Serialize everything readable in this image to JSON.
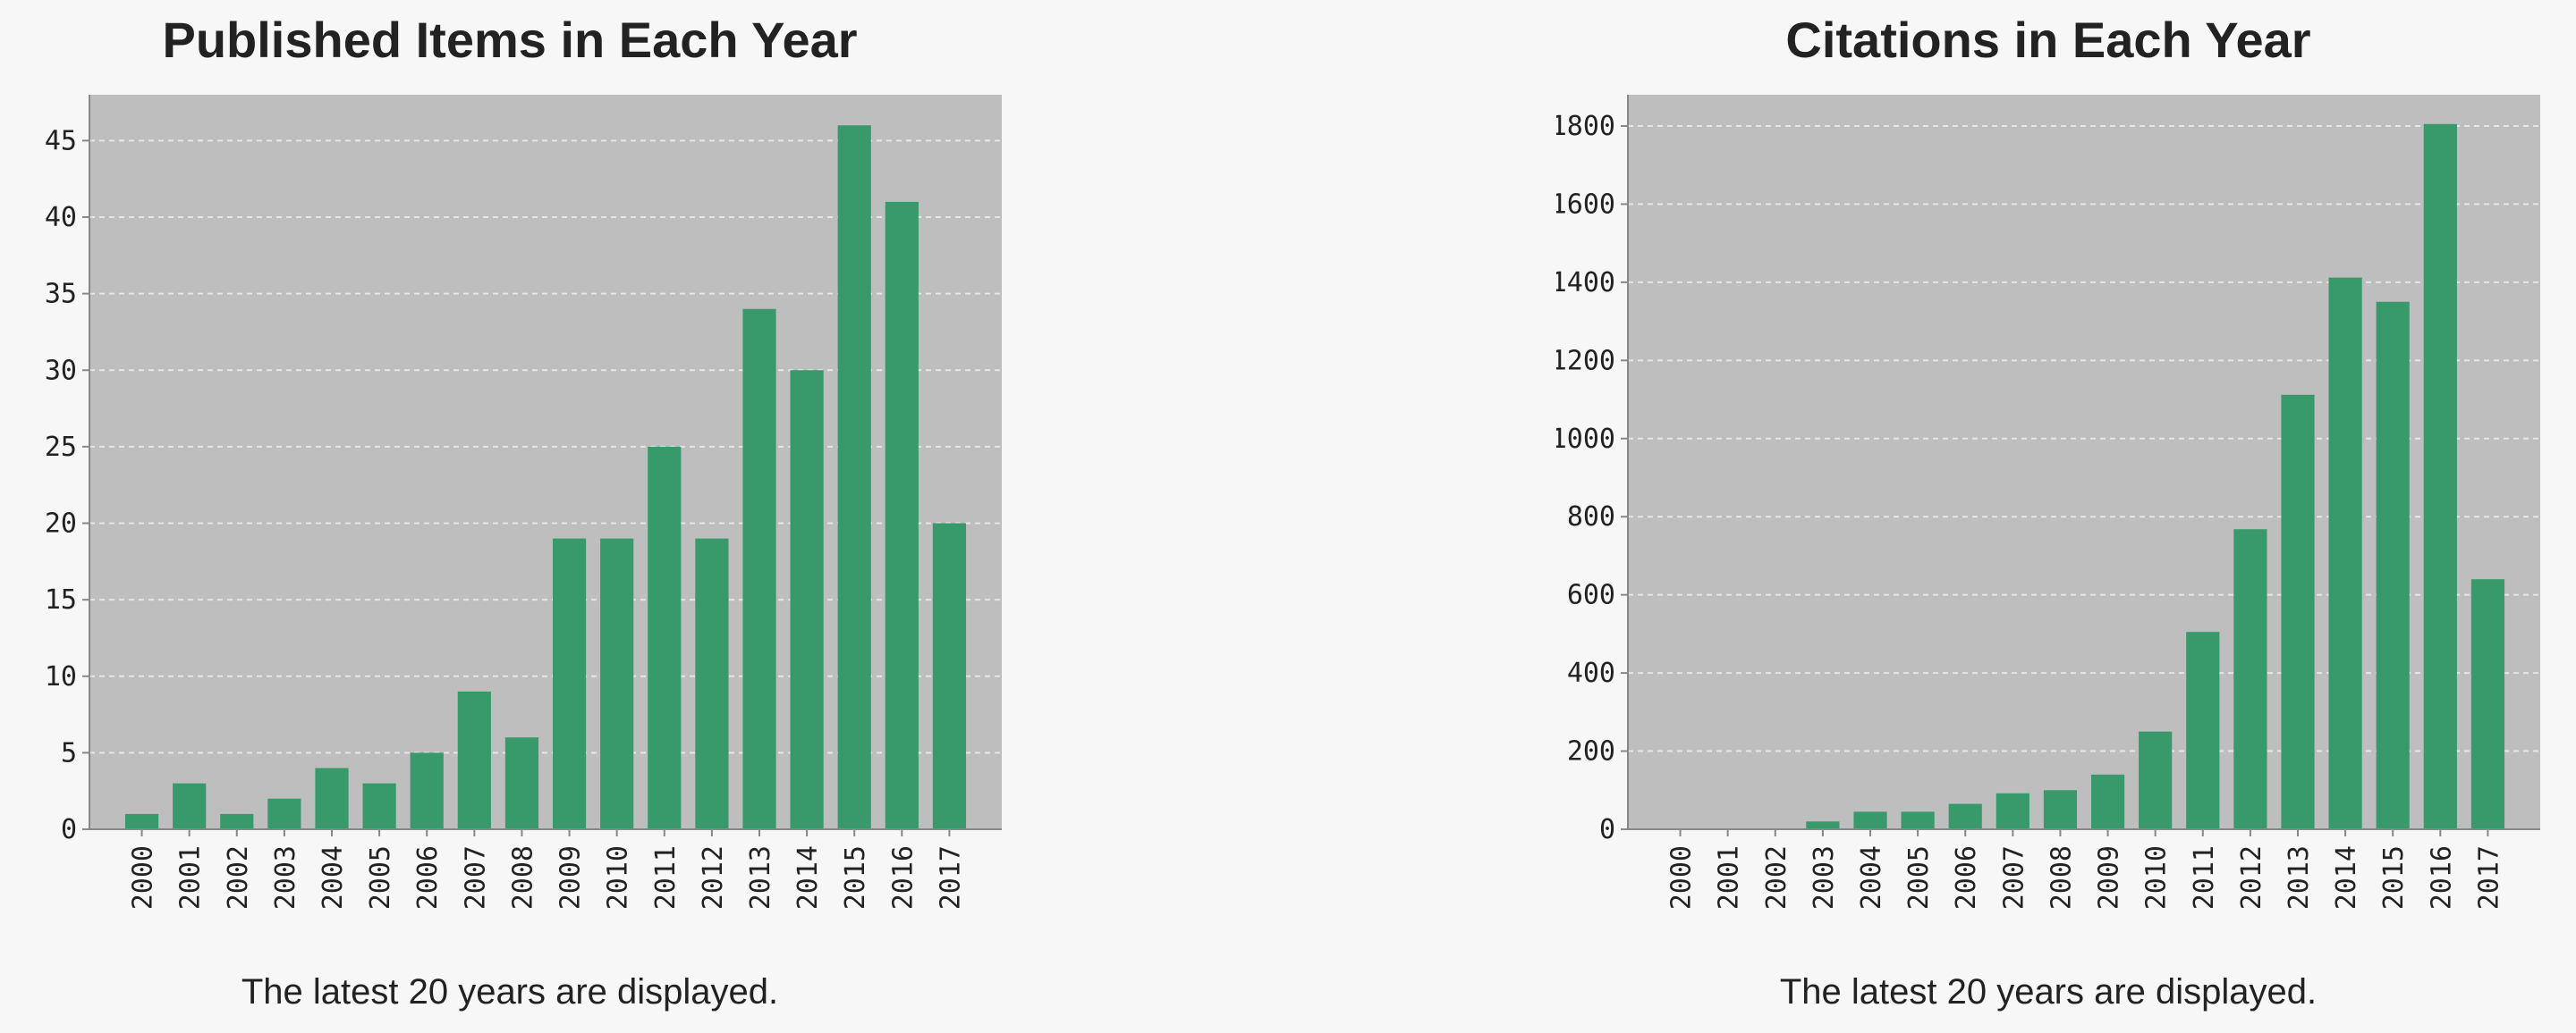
{
  "colors": {
    "page_background": "#f7f7f7",
    "plot_background": "#bebebe",
    "bar": "#38996b",
    "gridline": "#e6e6e6",
    "axis": "#888888",
    "text": "#222222"
  },
  "chart_data": [
    {
      "type": "bar",
      "title": "Published Items in Each Year",
      "caption": "The latest 20 years are displayed.",
      "categories": [
        "2000",
        "2001",
        "2002",
        "2003",
        "2004",
        "2005",
        "2006",
        "2007",
        "2008",
        "2009",
        "2010",
        "2011",
        "2012",
        "2013",
        "2014",
        "2015",
        "2016",
        "2017"
      ],
      "values": [
        1,
        3,
        1,
        2,
        4,
        3,
        5,
        9,
        6,
        19,
        19,
        25,
        19,
        34,
        30,
        46,
        41,
        20
      ],
      "yticks": [
        "0",
        "5",
        "10",
        "15",
        "20",
        "25",
        "30",
        "35",
        "40",
        "45"
      ],
      "ylim": [
        0,
        48
      ],
      "grid": true,
      "xlabel": "",
      "ylabel": ""
    },
    {
      "type": "bar",
      "title": "Citations in Each Year",
      "caption": "The latest 20 years are displayed.",
      "categories": [
        "2000",
        "2001",
        "2002",
        "2003",
        "2004",
        "2005",
        "2006",
        "2007",
        "2008",
        "2009",
        "2010",
        "2011",
        "2012",
        "2013",
        "2014",
        "2015",
        "2016",
        "2017"
      ],
      "values": [
        0,
        0,
        0,
        20,
        45,
        45,
        65,
        92,
        100,
        140,
        250,
        505,
        768,
        1112,
        1412,
        1350,
        1805,
        640
      ],
      "yticks": [
        "0",
        "200",
        "400",
        "600",
        "800",
        "1000",
        "1200",
        "1400",
        "1600",
        "1800"
      ],
      "ylim": [
        0,
        1880
      ],
      "grid": true,
      "xlabel": "",
      "ylabel": ""
    }
  ]
}
